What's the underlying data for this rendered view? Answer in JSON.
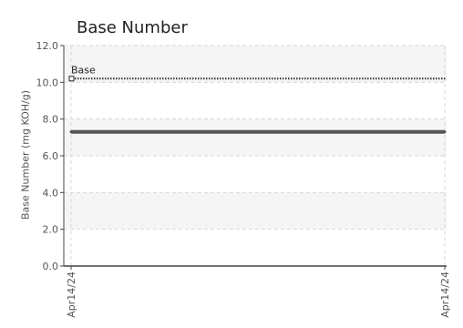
{
  "chart_data": {
    "type": "line",
    "title": "Base Number",
    "xlabel": "",
    "ylabel": "Base Number (mg KOH/g)",
    "x": [
      "Apr14/24",
      "Apr14/24"
    ],
    "ylim": [
      0,
      12
    ],
    "yticks": [
      "0.0",
      "2.0",
      "4.0",
      "6.0",
      "8.0",
      "10.0",
      "12.0"
    ],
    "grid": true,
    "series": [
      {
        "values": [
          7.3,
          7.3
        ],
        "color": "#555555",
        "style": "solid"
      }
    ],
    "reference_lines": [
      {
        "label": "Base",
        "value": 10.2,
        "style": "dotted",
        "color": "#333333"
      }
    ]
  }
}
